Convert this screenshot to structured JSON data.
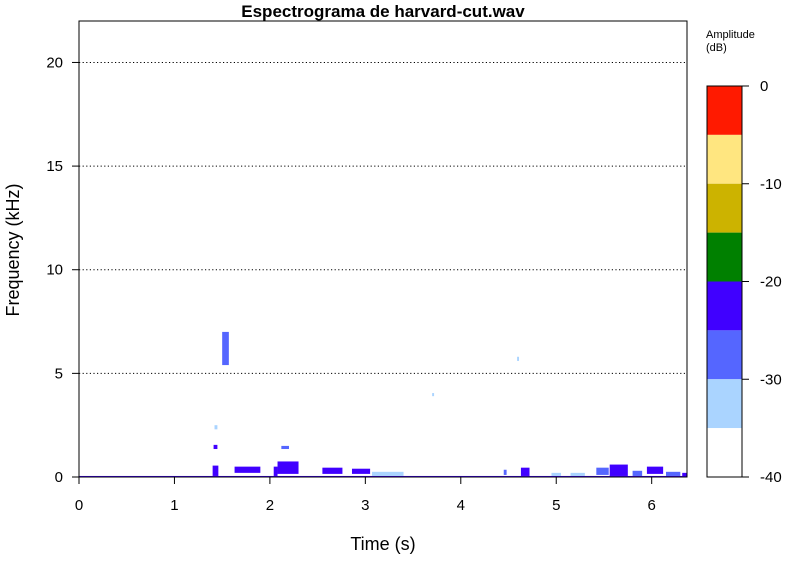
{
  "chart_data": {
    "type": "heatmap",
    "title": "Espectrograma de harvard-cut.wav",
    "xlabel": "Time (s)",
    "ylabel": "Frequency (kHz)",
    "xlim": [
      0,
      6.37
    ],
    "ylim": [
      0,
      22
    ],
    "x_ticks": [
      "0",
      "1",
      "2",
      "3",
      "4",
      "5",
      "6"
    ],
    "y_ticks": [
      "0",
      "5",
      "10",
      "15",
      "20"
    ],
    "y_grid": [
      5,
      10,
      15,
      20
    ],
    "grid": "horizontal dotted",
    "legend": {
      "title_line1": "Amplitude",
      "title_line2": "(dB)",
      "placement": "right",
      "range": [
        -40,
        0
      ],
      "ticks": [
        "0",
        "-10",
        "-20",
        "-30",
        "-40"
      ],
      "bands": [
        {
          "from": -5,
          "to": 0,
          "color": "#ff1a00"
        },
        {
          "from": -10,
          "to": -5,
          "color": "#ffe680"
        },
        {
          "from": -15,
          "to": -10,
          "color": "#ccb300"
        },
        {
          "from": -20,
          "to": -15,
          "color": "#008000"
        },
        {
          "from": -25,
          "to": -20,
          "color": "#4000ff"
        },
        {
          "from": -30,
          "to": -25,
          "color": "#5566ff"
        },
        {
          "from": -35,
          "to": -30,
          "color": "#aad4ff"
        },
        {
          "from": -40,
          "to": -35,
          "color": "#ffffff"
        }
      ]
    },
    "energy_regions": [
      {
        "t0": 1.4,
        "t1": 1.46,
        "f0": 0.05,
        "f1": 0.55,
        "db": -22
      },
      {
        "t0": 1.41,
        "t1": 1.45,
        "f0": 1.35,
        "f1": 1.55,
        "db": -25
      },
      {
        "t0": 1.42,
        "t1": 1.45,
        "f0": 2.3,
        "f1": 2.5,
        "db": -32
      },
      {
        "t0": 1.5,
        "t1": 1.57,
        "f0": 5.4,
        "f1": 7.0,
        "db": -27
      },
      {
        "t0": 1.63,
        "t1": 1.9,
        "f0": 0.2,
        "f1": 0.5,
        "db": -23
      },
      {
        "t0": 2.04,
        "t1": 2.08,
        "f0": 0.05,
        "f1": 0.5,
        "db": -25
      },
      {
        "t0": 2.08,
        "t1": 2.3,
        "f0": 0.15,
        "f1": 0.75,
        "db": -23
      },
      {
        "t0": 2.12,
        "t1": 2.2,
        "f0": 1.35,
        "f1": 1.5,
        "db": -30
      },
      {
        "t0": 2.55,
        "t1": 2.76,
        "f0": 0.15,
        "f1": 0.45,
        "db": -24
      },
      {
        "t0": 2.86,
        "t1": 3.05,
        "f0": 0.15,
        "f1": 0.4,
        "db": -24
      },
      {
        "t0": 3.07,
        "t1": 3.4,
        "f0": 0.05,
        "f1": 0.25,
        "db": -31
      },
      {
        "t0": 3.7,
        "t1": 3.72,
        "f0": 3.9,
        "f1": 4.05,
        "db": -33
      },
      {
        "t0": 4.45,
        "t1": 4.48,
        "f0": 0.1,
        "f1": 0.35,
        "db": -27
      },
      {
        "t0": 4.59,
        "t1": 4.61,
        "f0": 5.6,
        "f1": 5.8,
        "db": -32
      },
      {
        "t0": 4.63,
        "t1": 4.72,
        "f0": 0.05,
        "f1": 0.45,
        "db": -24
      },
      {
        "t0": 4.95,
        "t1": 5.05,
        "f0": 0.05,
        "f1": 0.2,
        "db": -31
      },
      {
        "t0": 5.15,
        "t1": 5.3,
        "f0": 0.05,
        "f1": 0.2,
        "db": -32
      },
      {
        "t0": 5.42,
        "t1": 5.55,
        "f0": 0.1,
        "f1": 0.45,
        "db": -26
      },
      {
        "t0": 5.56,
        "t1": 5.75,
        "f0": 0.05,
        "f1": 0.6,
        "db": -25
      },
      {
        "t0": 5.8,
        "t1": 5.9,
        "f0": 0.05,
        "f1": 0.3,
        "db": -28
      },
      {
        "t0": 5.95,
        "t1": 6.12,
        "f0": 0.15,
        "f1": 0.5,
        "db": -25
      },
      {
        "t0": 6.15,
        "t1": 6.3,
        "f0": 0.05,
        "f1": 0.25,
        "db": -29
      },
      {
        "t0": 6.32,
        "t1": 6.37,
        "f0": 0.0,
        "f1": 0.2,
        "db": -22
      }
    ],
    "baseline_band": {
      "t0": 0.0,
      "t1": 6.37,
      "f0": 0.0,
      "f1": 0.05,
      "db": -22
    }
  }
}
